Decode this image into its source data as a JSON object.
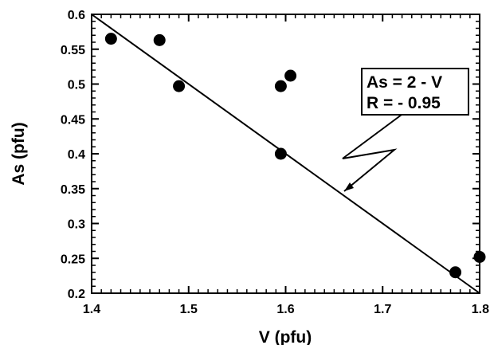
{
  "chart_data": {
    "type": "scatter",
    "title": "",
    "xlabel": "V (pfu)",
    "ylabel": "As (pfu)",
    "xlim": [
      1.4,
      1.8
    ],
    "ylim": [
      0.2,
      0.6
    ],
    "xticks": [
      "1.4",
      "1.5",
      "1.6",
      "1.7",
      "1.8"
    ],
    "yticks": [
      "0.2",
      "0.25",
      "0.3",
      "0.35",
      "0.4",
      "0.45",
      "0.5",
      "0.55",
      "0.6"
    ],
    "grid": false,
    "series": [
      {
        "points": [
          {
            "x": 1.42,
            "y": 0.565
          },
          {
            "x": 1.47,
            "y": 0.563
          },
          {
            "x": 1.49,
            "y": 0.497
          },
          {
            "x": 1.595,
            "y": 0.497
          },
          {
            "x": 1.605,
            "y": 0.512
          },
          {
            "x": 1.595,
            "y": 0.4
          },
          {
            "x": 1.775,
            "y": 0.23
          },
          {
            "x": 1.8,
            "y": 0.252
          }
        ],
        "color": "#000000"
      }
    ],
    "fit_line": {
      "x": [
        1.4,
        1.8
      ],
      "y": [
        0.6,
        0.2
      ]
    },
    "annotation": {
      "lines": [
        "As = 2 - V",
        "R = - 0.95"
      ]
    }
  }
}
